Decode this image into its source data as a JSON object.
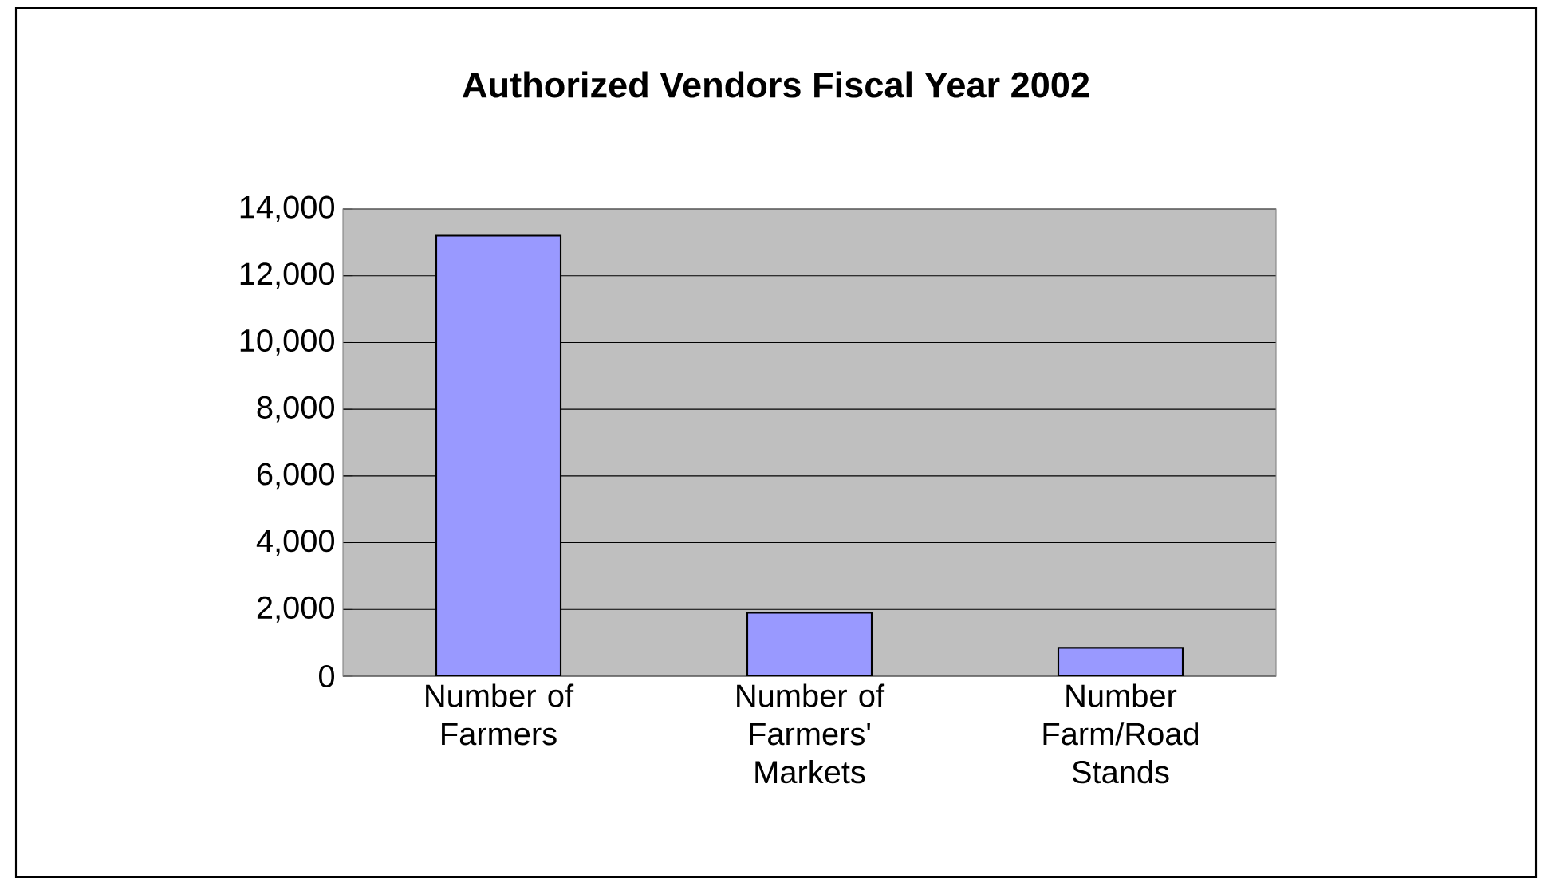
{
  "chart_data": {
    "type": "bar",
    "title": "Authorized Vendors Fiscal Year 2002",
    "categories": [
      "Number of Farmers",
      "Number of Farmers' Markets",
      "Number Farm/Road Stands"
    ],
    "values": [
      13200,
      1900,
      850
    ],
    "color": "#9999ff",
    "ylim": [
      0,
      14000
    ],
    "yticks": [
      {
        "value": 0,
        "label": "0"
      },
      {
        "value": 2000,
        "label": "2,000"
      },
      {
        "value": 4000,
        "label": "4,000"
      },
      {
        "value": 6000,
        "label": "6,000"
      },
      {
        "value": 8000,
        "label": "8,000"
      },
      {
        "value": 10000,
        "label": "10,000"
      },
      {
        "value": 12000,
        "label": "12,000"
      },
      {
        "value": 14000,
        "label": "14,000"
      }
    ],
    "grid": true
  }
}
